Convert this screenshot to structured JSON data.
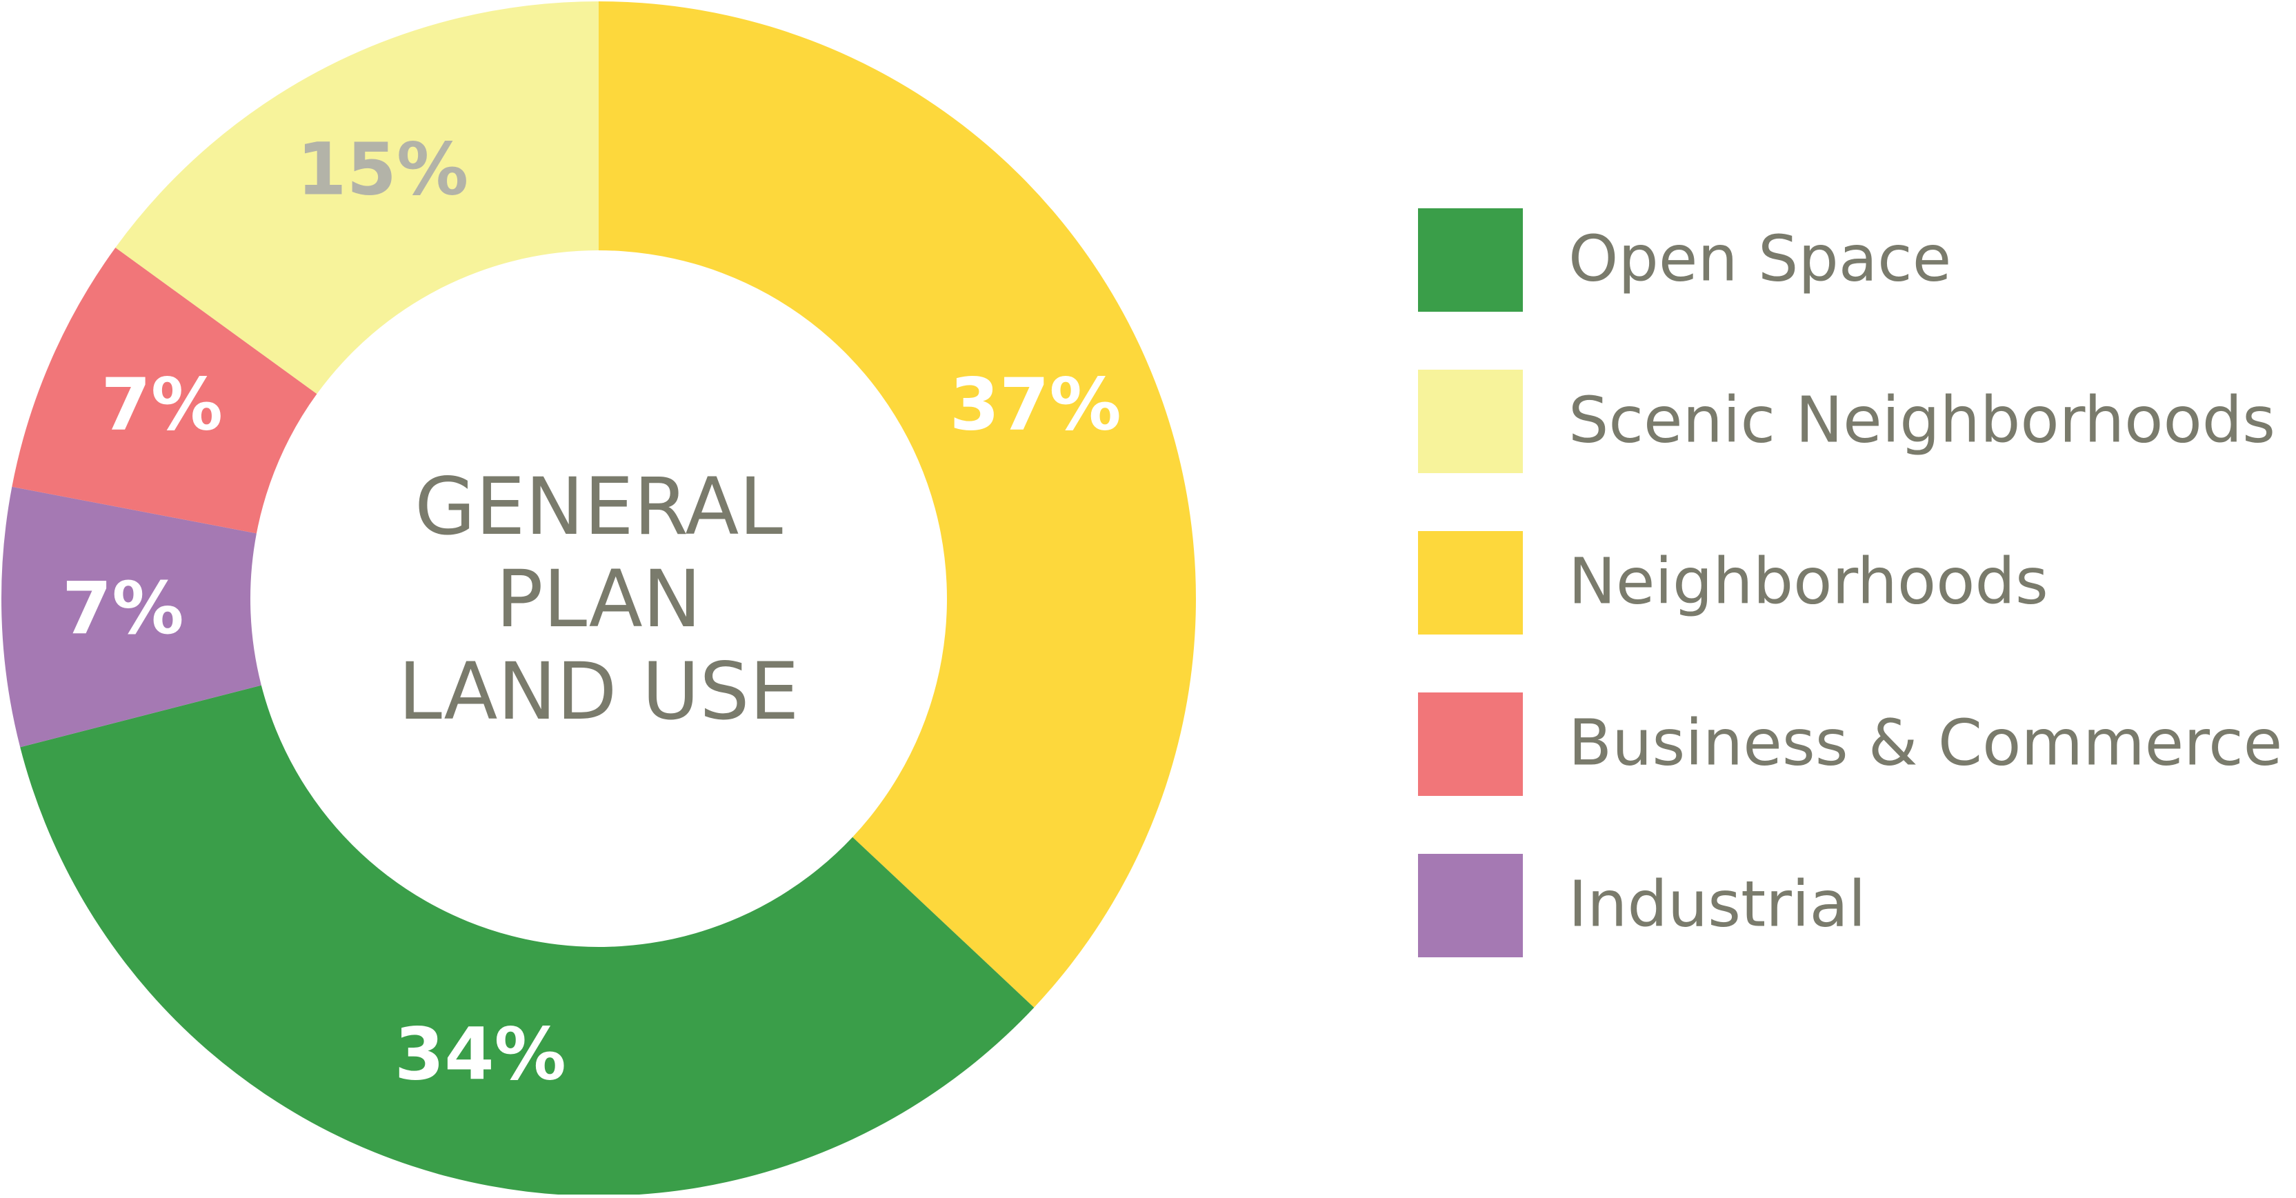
{
  "chart_data": {
    "type": "pie",
    "title": "GENERAL PLAN LAND USE",
    "title_lines": [
      "GENERAL",
      "PLAN",
      "LAND USE"
    ],
    "legend_position": "right",
    "slices": [
      {
        "name": "Neighborhoods",
        "value": 37,
        "label": "37%",
        "color": "#fdd83c",
        "label_color": "#ffffff"
      },
      {
        "name": "Open Space",
        "value": 34,
        "label": "34%",
        "color": "#3a9e49",
        "label_color": "#ffffff"
      },
      {
        "name": "Industrial",
        "value": 7,
        "label": "7%",
        "color": "#a579b3",
        "label_color": "#ffffff"
      },
      {
        "name": "Business & Commerce",
        "value": 7,
        "label": "7%",
        "color": "#f17679",
        "label_color": "#ffffff"
      },
      {
        "name": "Scenic Neighborhoods",
        "value": 15,
        "label": "15%",
        "color": "#f7f39b",
        "label_color": "#b3b3a8"
      }
    ],
    "legend": [
      {
        "name": "Open Space",
        "color": "#3a9e49"
      },
      {
        "name": "Scenic Neighborhoods",
        "color": "#f7f39b"
      },
      {
        "name": "Neighborhoods",
        "color": "#fdd83c"
      },
      {
        "name": "Business & Commerce",
        "color": "#f17679"
      },
      {
        "name": "Industrial",
        "color": "#a579b3"
      }
    ]
  }
}
